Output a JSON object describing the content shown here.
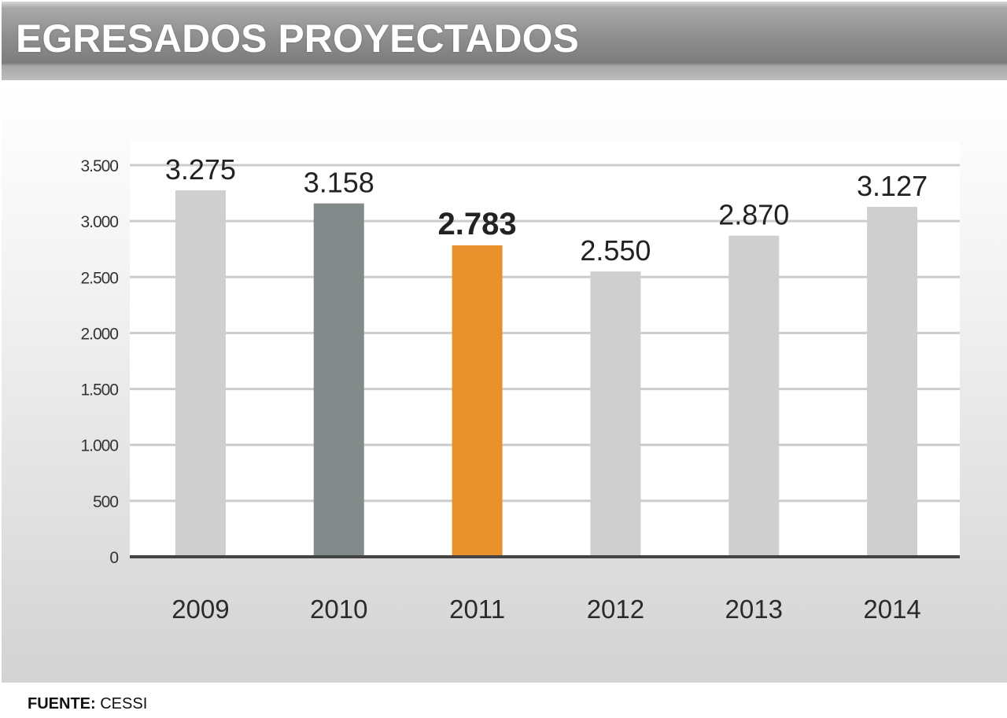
{
  "title": "EGRESADOS PROYECTADOS",
  "source": {
    "label": "FUENTE:",
    "value": "CESSI"
  },
  "colors": {
    "default_bar": "#cfcfcf",
    "highlight_dark": "#838b8a",
    "highlight_orange": "#e8912c",
    "gridline": "#cccccc",
    "axis": "#444444"
  },
  "chart_data": {
    "type": "bar",
    "title": "EGRESADOS PROYECTADOS",
    "xlabel": "",
    "ylabel": "",
    "categories": [
      "2009",
      "2010",
      "2011",
      "2012",
      "2013",
      "2014"
    ],
    "values": [
      3275,
      3158,
      2783,
      2550,
      2870,
      3127
    ],
    "value_labels": [
      "3.275",
      "3.158",
      "2.783",
      "2.550",
      "2.870",
      "3.127"
    ],
    "bar_colors": [
      "#cfcfcf",
      "#838b8a",
      "#e8912c",
      "#cfcfcf",
      "#cfcfcf",
      "#cfcfcf"
    ],
    "bold_labels": [
      false,
      false,
      true,
      false,
      false,
      false
    ],
    "ylim": [
      0,
      3500
    ],
    "yticks": [
      0,
      500,
      1000,
      1500,
      2000,
      2500,
      3000,
      3500
    ],
    "ytick_labels": [
      "0",
      "500",
      "1.000",
      "1.500",
      "2.000",
      "2.500",
      "3.000",
      "3.500"
    ],
    "grid": true,
    "legend": "none"
  }
}
